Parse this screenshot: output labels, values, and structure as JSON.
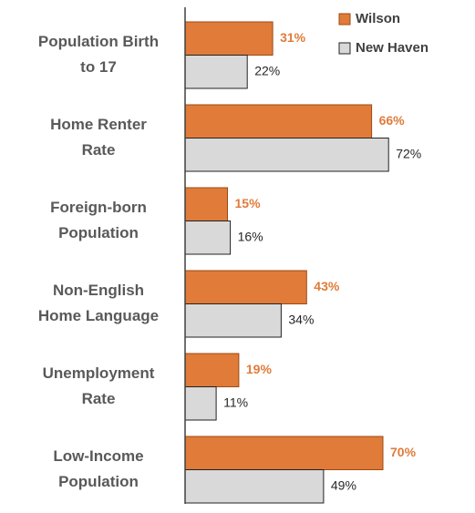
{
  "chart_data": {
    "type": "bar",
    "orientation": "horizontal",
    "categories": [
      [
        "Population Birth",
        "to 17"
      ],
      [
        "Home Renter",
        "Rate"
      ],
      [
        "Foreign-born",
        "Population"
      ],
      [
        "Non-English",
        "Home Language"
      ],
      [
        "Unemployment",
        "Rate"
      ],
      [
        "Low-Income",
        "Population"
      ]
    ],
    "series": [
      {
        "name": "Wilson",
        "color": "#e07b39",
        "values": [
          31,
          66,
          15,
          43,
          19,
          70
        ],
        "value_labels": [
          "31%",
          "66%",
          "15%",
          "43%",
          "19%",
          "70%"
        ]
      },
      {
        "name": "New Haven",
        "color": "#d9d9d9",
        "values": [
          22,
          72,
          16,
          34,
          11,
          49
        ],
        "value_labels": [
          "22%",
          "72%",
          "16%",
          "34%",
          "11%",
          "49%"
        ]
      }
    ],
    "legend": "top-right"
  }
}
